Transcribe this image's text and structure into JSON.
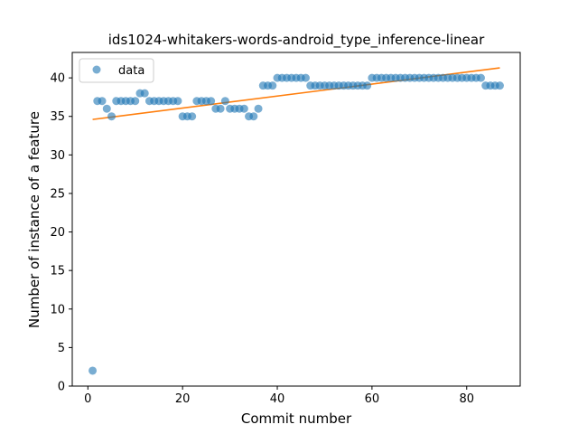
{
  "chart_data": {
    "type": "scatter",
    "title": "ids1024-whitakers-words-android_type_inference-linear",
    "xlabel": "Commit number",
    "ylabel": "Number of instance of a feature",
    "xlim": [
      -3.3,
      91.3
    ],
    "ylim": [
      0,
      43.3
    ],
    "xticks": [
      0,
      20,
      40,
      60,
      80
    ],
    "yticks": [
      0,
      5,
      10,
      15,
      20,
      25,
      30,
      35,
      40
    ],
    "legend": {
      "position": "top-left",
      "entries": [
        "data"
      ]
    },
    "grid": false,
    "series": [
      {
        "name": "data",
        "kind": "scatter",
        "color": "#1f77b4",
        "x": [
          1,
          2,
          3,
          4,
          5,
          6,
          7,
          8,
          9,
          10,
          11,
          12,
          13,
          14,
          15,
          16,
          17,
          18,
          19,
          20,
          21,
          22,
          23,
          24,
          25,
          26,
          27,
          28,
          29,
          30,
          31,
          32,
          33,
          34,
          35,
          36,
          37,
          38,
          39,
          40,
          41,
          42,
          43,
          44,
          45,
          46,
          47,
          48,
          49,
          50,
          51,
          52,
          53,
          54,
          55,
          56,
          57,
          58,
          59,
          60,
          61,
          62,
          63,
          64,
          65,
          66,
          67,
          68,
          69,
          70,
          71,
          72,
          73,
          74,
          75,
          76,
          77,
          78,
          79,
          80,
          81,
          82,
          83,
          84,
          85,
          86,
          87
        ],
        "y": [
          2,
          37,
          37,
          36,
          35,
          37,
          37,
          37,
          37,
          37,
          38,
          38,
          37,
          37,
          37,
          37,
          37,
          37,
          37,
          35,
          35,
          35,
          37,
          37,
          37,
          37,
          36,
          36,
          37,
          36,
          36,
          36,
          36,
          35,
          35,
          36,
          39,
          39,
          39,
          40,
          40,
          40,
          40,
          40,
          40,
          40,
          39,
          39,
          39,
          39,
          39,
          39,
          39,
          39,
          39,
          39,
          39,
          39,
          39,
          40,
          40,
          40,
          40,
          40,
          40,
          40,
          40,
          40,
          40,
          40,
          40,
          40,
          40,
          40,
          40,
          40,
          40,
          40,
          40,
          40,
          40,
          40,
          40,
          39,
          39,
          39,
          39
        ]
      },
      {
        "name": "linear fit",
        "kind": "line",
        "color": "#ff7f0e",
        "x": [
          1,
          87
        ],
        "y": [
          34.6,
          41.3
        ]
      }
    ]
  }
}
